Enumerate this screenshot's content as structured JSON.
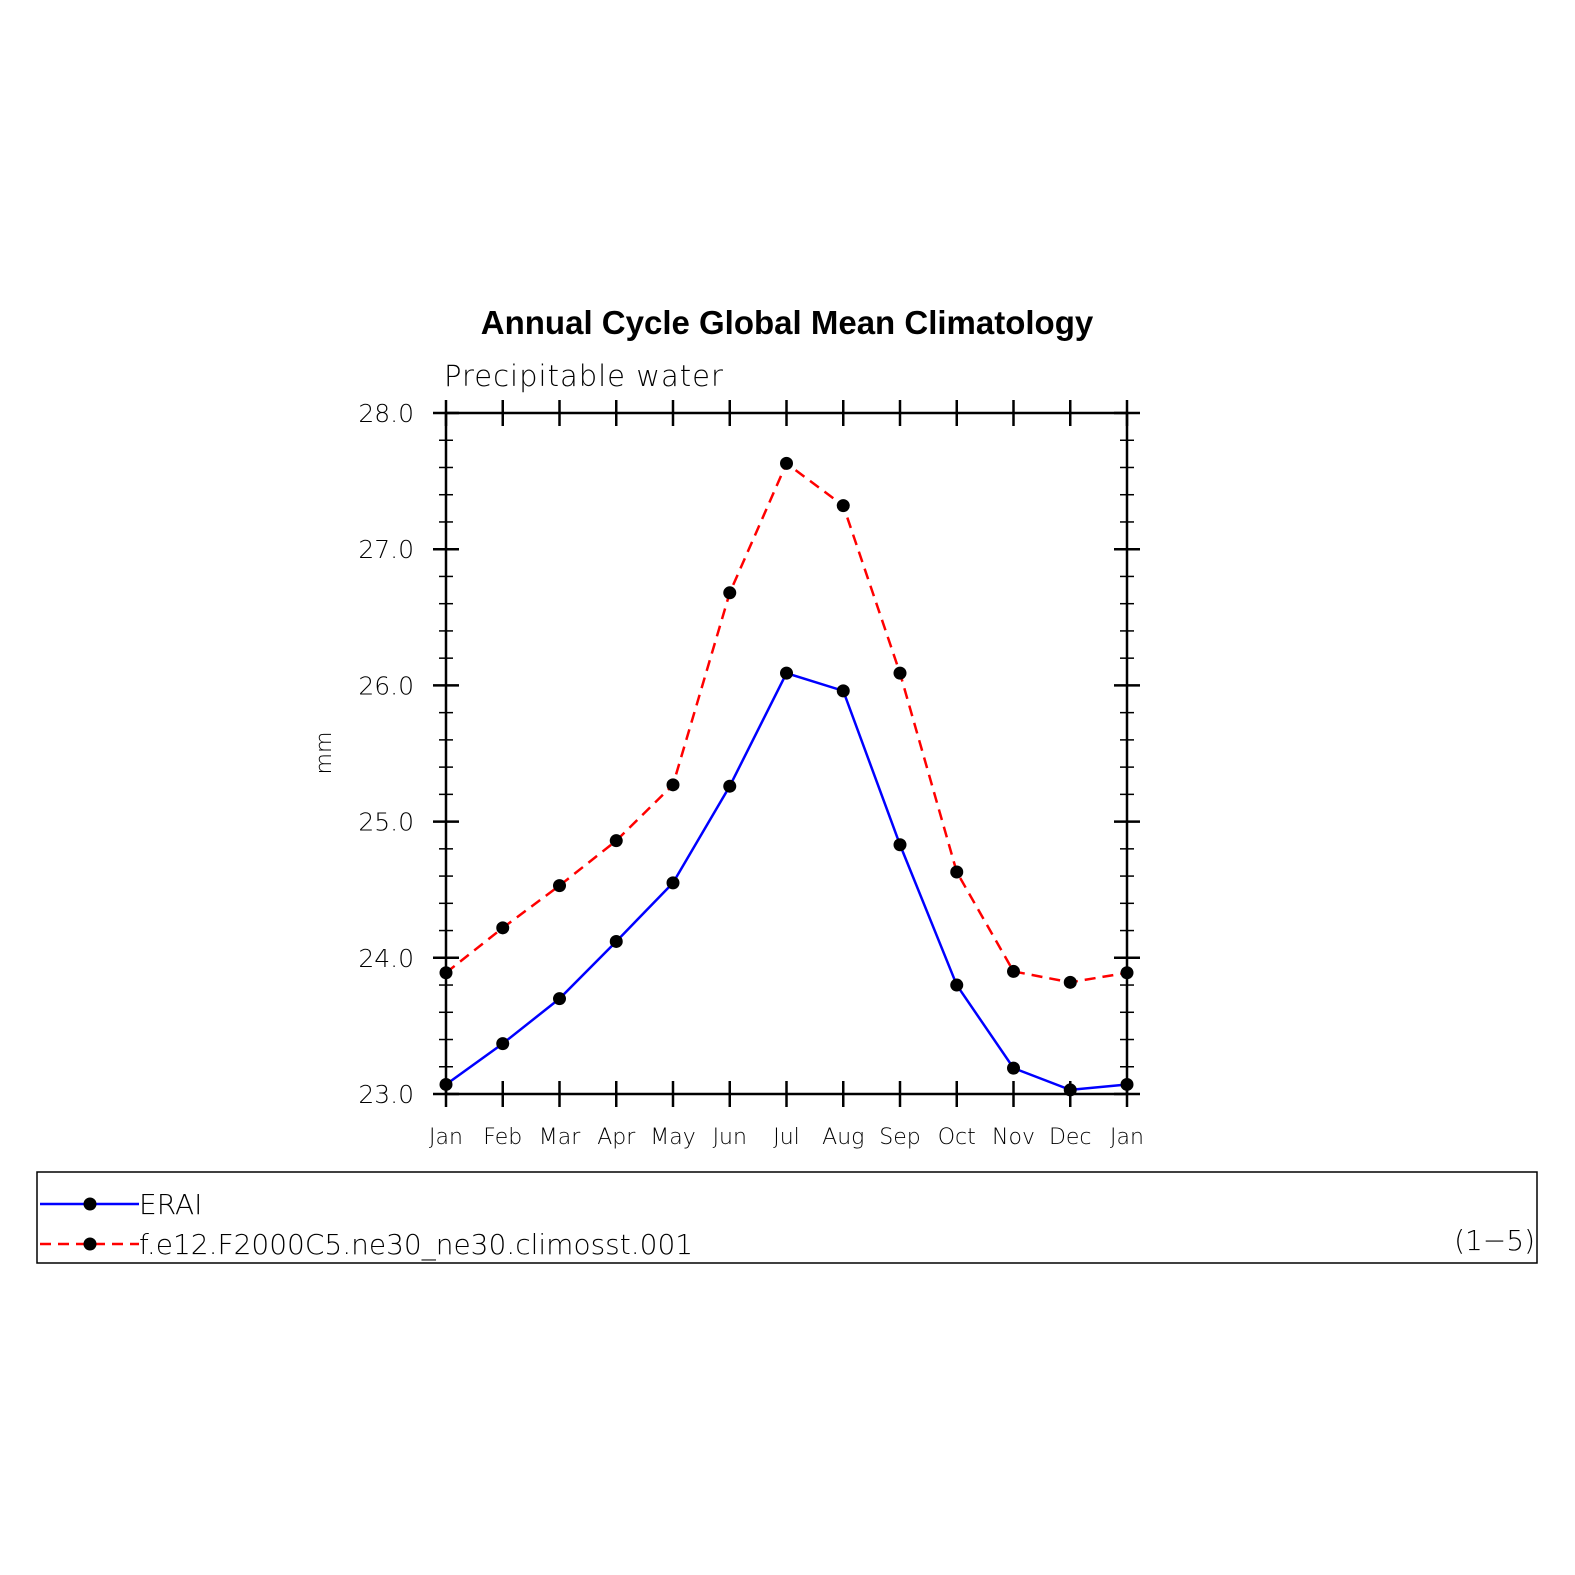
{
  "chart_data": {
    "type": "line",
    "title": "Annual Cycle Global Mean Climatology",
    "subtitle": "Precipitable water",
    "ylabel": "mm",
    "xlabel": "",
    "categories": [
      "Jan",
      "Feb",
      "Mar",
      "Apr",
      "May",
      "Jun",
      "Jul",
      "Aug",
      "Sep",
      "Oct",
      "Nov",
      "Dec",
      "Jan"
    ],
    "ylim": [
      23.0,
      28.0
    ],
    "yticks": [
      "23.0",
      "24.0",
      "25.0",
      "26.0",
      "27.0",
      "28.0"
    ],
    "grid": false,
    "legend_position": "bottom",
    "series": [
      {
        "name": "ERAI",
        "color": "#0000ff",
        "dash": "solid",
        "values": [
          23.07,
          23.37,
          23.7,
          24.12,
          24.55,
          25.26,
          26.09,
          25.96,
          24.83,
          23.8,
          23.19,
          23.03,
          23.07
        ]
      },
      {
        "name": "f.e12.F2000C5.ne30_ne30.climosst.001",
        "color": "#ff0000",
        "dash": "dashed",
        "values": [
          23.89,
          24.22,
          24.53,
          24.86,
          25.27,
          26.68,
          27.63,
          27.32,
          26.09,
          24.63,
          23.9,
          23.82,
          23.89
        ]
      }
    ],
    "legend_note": "(1−5)"
  }
}
